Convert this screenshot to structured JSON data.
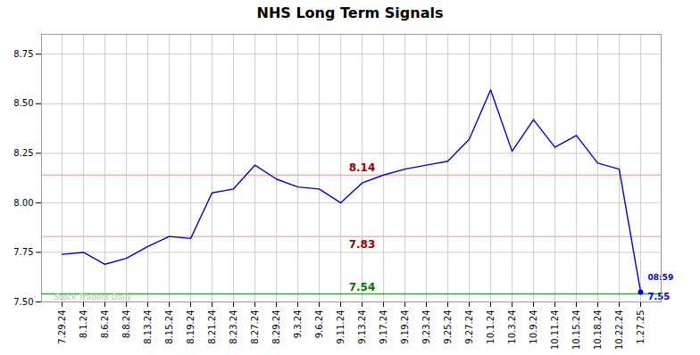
{
  "chart_data": {
    "type": "line",
    "title": "NHS Long Term Signals",
    "categories": [
      "7.29.24",
      "8.1.24",
      "8.6.24",
      "8.8.24",
      "8.13.24",
      "8.15.24",
      "8.19.24",
      "8.21.24",
      "8.23.24",
      "8.27.24",
      "8.29.24",
      "9.3.24",
      "9.6.24",
      "9.11.24",
      "9.13.24",
      "9.17.24",
      "9.19.24",
      "9.23.24",
      "9.25.24",
      "9.27.24",
      "10.1.24",
      "10.3.24",
      "10.9.24",
      "10.11.24",
      "10.15.24",
      "10.18.24",
      "10.22.24",
      "1.27.25"
    ],
    "values": [
      7.74,
      7.75,
      7.69,
      7.72,
      7.78,
      7.83,
      7.82,
      8.05,
      8.07,
      8.19,
      8.12,
      8.08,
      8.07,
      8.0,
      8.1,
      8.14,
      8.17,
      8.19,
      8.21,
      8.32,
      8.57,
      8.26,
      8.42,
      8.28,
      8.34,
      8.2,
      8.17,
      7.55
    ],
    "color": "#0000cc",
    "ylim": [
      7.5,
      8.85
    ],
    "yticks": [
      {
        "value": 7.5,
        "label": "7.50"
      },
      {
        "value": 7.75,
        "label": "7.75"
      },
      {
        "value": 8.0,
        "label": "8.00"
      },
      {
        "value": 8.25,
        "label": "8.25"
      },
      {
        "value": 8.5,
        "label": "8.50"
      },
      {
        "value": 8.75,
        "label": "8.75"
      }
    ],
    "grid": true,
    "hlines": [
      {
        "value": 8.14,
        "color": "#ffb0b0"
      },
      {
        "value": 7.83,
        "color": "#ffb0b0"
      },
      {
        "value": 7.54,
        "color": "#00cc00"
      }
    ],
    "annotations": [
      {
        "text": "8.14",
        "x": "9.13.24",
        "y": 8.14,
        "color": "#990000"
      },
      {
        "text": "7.83",
        "x": "9.13.24",
        "y": 7.83,
        "color": "#990000"
      },
      {
        "text": "7.54",
        "x": "9.13.24",
        "y": 7.54,
        "color": "#007700"
      }
    ],
    "end_marker": {
      "value": 7.55,
      "label": "7.55",
      "time": "08:59"
    },
    "watermark": {
      "text": "Stock Traders Daily",
      "color": "#bbbbbb"
    }
  }
}
